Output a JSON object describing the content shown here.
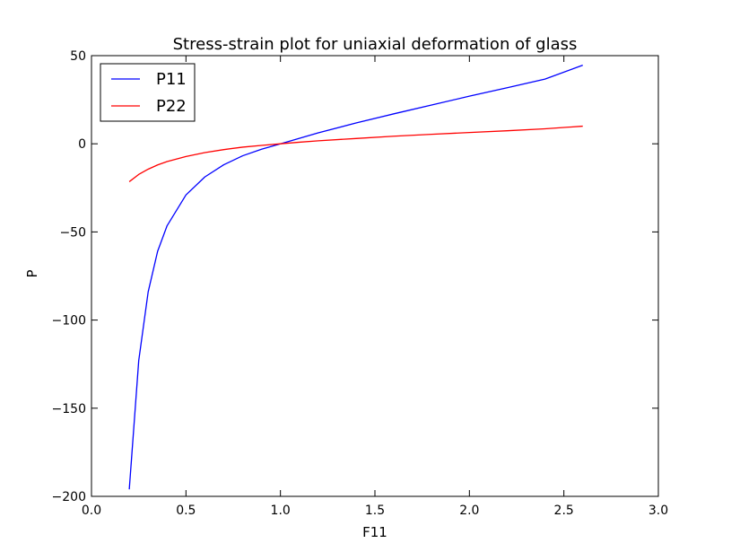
{
  "chart_data": {
    "type": "line",
    "title": "Stress-strain plot for uniaxial deformation of glass",
    "xlabel": "F11",
    "ylabel": "P",
    "xlim": [
      0.0,
      3.0
    ],
    "ylim": [
      -200,
      50
    ],
    "xticks": [
      0.0,
      0.5,
      1.0,
      1.5,
      2.0,
      2.5,
      3.0
    ],
    "xtick_labels": [
      "0.0",
      "0.5",
      "1.0",
      "1.5",
      "2.0",
      "2.5",
      "3.0"
    ],
    "yticks": [
      -200,
      -150,
      -100,
      -50,
      0,
      50
    ],
    "ytick_labels": [
      "−200",
      "−150",
      "−100",
      "−50",
      "0",
      "50"
    ],
    "grid": false,
    "legend_position": "top-left",
    "x": [
      0.2,
      0.25,
      0.3,
      0.35,
      0.4,
      0.5,
      0.6,
      0.7,
      0.8,
      0.9,
      1.0,
      1.1,
      1.2,
      1.4,
      1.6,
      1.8,
      2.0,
      2.2,
      2.4,
      2.6
    ],
    "series": [
      {
        "name": "P11",
        "color": "#0000ff",
        "values": [
          -196,
          -123,
          -84,
          -61,
          -46.5,
          -29,
          -18.8,
          -11.9,
          -6.8,
          -3.1,
          0,
          3.1,
          6.2,
          11.8,
          17.0,
          22.0,
          27.0,
          31.8,
          36.7,
          44.6
        ]
      },
      {
        "name": "P22",
        "color": "#ff0000",
        "values": [
          -21.5,
          -17.4,
          -14.4,
          -12.0,
          -10.1,
          -7.2,
          -5.0,
          -3.3,
          -1.9,
          -0.9,
          0,
          0.9,
          1.7,
          3.0,
          4.3,
          5.4,
          6.4,
          7.4,
          8.5,
          10.0
        ]
      }
    ]
  }
}
